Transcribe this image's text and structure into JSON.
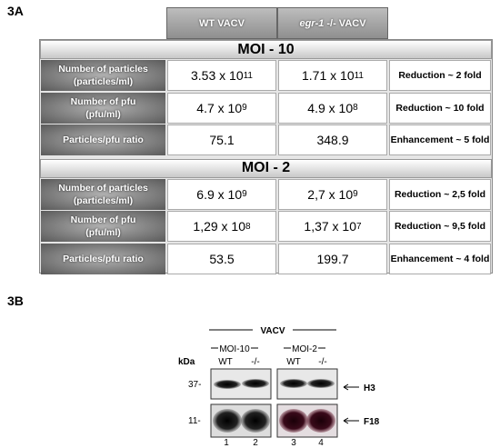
{
  "figure_a": {
    "label": "3A",
    "columns": [
      {
        "text": "WT VACV"
      },
      {
        "italic": "egr-1",
        "text": "-/- VACV"
      }
    ],
    "sections": [
      {
        "title": "MOI - 10",
        "rows": [
          {
            "label": [
              "Number of particles",
              "(particles/ml)"
            ],
            "values": [
              {
                "base": "3.53 x 10",
                "exp": "11"
              },
              {
                "base": "1.71 x 10",
                "exp": "11"
              }
            ],
            "change": "Reduction ~ 2 fold"
          },
          {
            "label": [
              "Number of pfu",
              "(pfu/ml)"
            ],
            "values": [
              {
                "base": "4.7 x 10",
                "exp": "9"
              },
              {
                "base": "4.9 x 10",
                "exp": "8"
              }
            ],
            "change": "Reduction ~ 10 fold"
          },
          {
            "label": [
              "Particles/pfu ratio"
            ],
            "values": [
              {
                "base": "75.1"
              },
              {
                "base": "348.9"
              }
            ],
            "change": "Enhancement ~ 5 fold"
          }
        ]
      },
      {
        "title": "MOI - 2",
        "rows": [
          {
            "label": [
              "Number of particles",
              "(particles/ml)"
            ],
            "values": [
              {
                "base": "6.9 x 10",
                "exp": "9"
              },
              {
                "base": "2,7 x 10",
                "exp": "9"
              }
            ],
            "change": "Reduction ~ 2,5 fold"
          },
          {
            "label": [
              "Number of pfu",
              "(pfu/ml)"
            ],
            "values": [
              {
                "base": "1,29 x 10",
                "exp": "8"
              },
              {
                "base": "1,37 x 10",
                "exp": "7"
              }
            ],
            "change": "Reduction ~ 9,5 fold"
          },
          {
            "label": [
              "Particles/pfu ratio"
            ],
            "values": [
              {
                "base": "53.5"
              },
              {
                "base": "199.7"
              }
            ],
            "change": "Enhancement ~ 4 fold"
          }
        ]
      }
    ]
  },
  "figure_b": {
    "label": "3B",
    "virus": "VACV",
    "groups": [
      "MOI-10",
      "MOI-2"
    ],
    "unit": "kDa",
    "lanes": [
      "WT",
      "-/-",
      "WT",
      "-/-"
    ],
    "markers": [
      "37-",
      "11-"
    ],
    "proteins": [
      "H3",
      "F18"
    ],
    "lane_numbers": [
      "1",
      "2",
      "3",
      "4"
    ]
  }
}
